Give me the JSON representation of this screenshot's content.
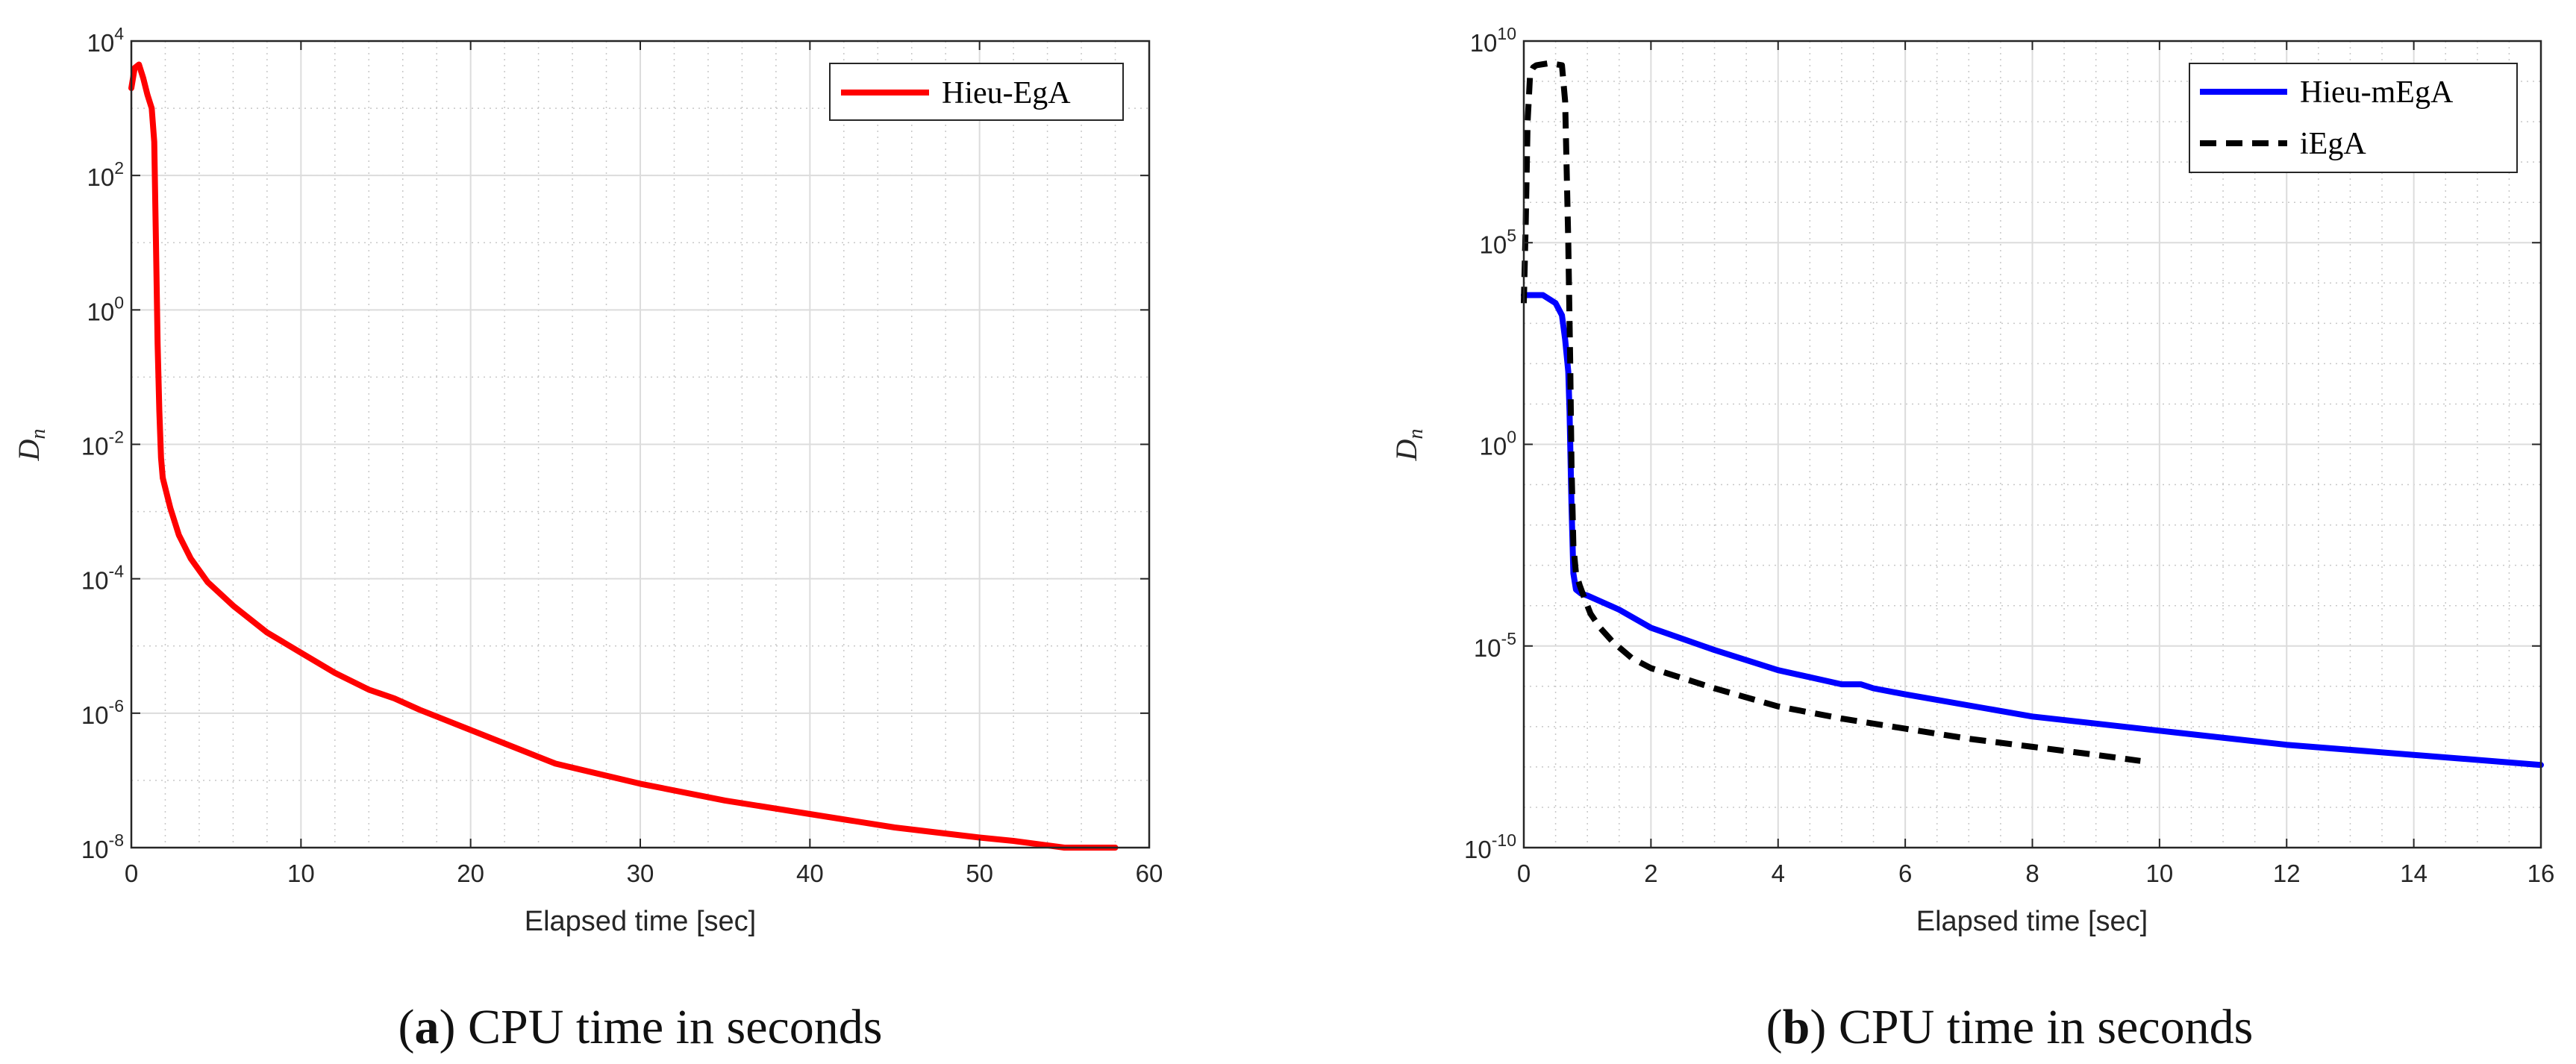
{
  "chart_data": [
    {
      "type": "line",
      "panel_label": "a",
      "caption_text": "CPU time in seconds",
      "xlabel": "Elapsed time [sec]",
      "ylabel": "D",
      "ylabel_sub": "n",
      "xlim": [
        0,
        60
      ],
      "ylog_range": [
        -8,
        4
      ],
      "yscale": "log",
      "grid": true,
      "minor_grid": true,
      "legend_position": "top-right",
      "x_ticks": [
        "0",
        "10",
        "20",
        "30",
        "40",
        "50",
        "60"
      ],
      "y_tick_exponents": [
        "-8",
        "-6",
        "-4",
        "-2",
        "0",
        "2",
        "4"
      ],
      "series": [
        {
          "name": "Hieu-EgA",
          "color": "#ff0000",
          "style": "solid",
          "x": [
            0,
            0.2,
            0.45,
            0.7,
            0.95,
            1.2,
            1.35,
            1.45,
            1.55,
            1.65,
            1.75,
            1.85,
            2.0,
            2.3,
            2.8,
            3.5,
            4.5,
            6,
            8,
            10,
            12,
            14,
            15.5,
            17,
            18,
            20,
            22,
            25,
            30,
            35,
            40,
            45,
            50,
            52,
            55,
            58
          ],
          "log10": [
            3.3,
            3.6,
            3.65,
            3.45,
            3.2,
            3.0,
            2.5,
            1.0,
            -0.5,
            -1.5,
            -2.2,
            -2.5,
            -2.65,
            -2.95,
            -3.35,
            -3.7,
            -4.05,
            -4.4,
            -4.8,
            -5.1,
            -5.4,
            -5.65,
            -5.78,
            -5.95,
            -6.05,
            -6.25,
            -6.45,
            -6.75,
            -7.05,
            -7.3,
            -7.5,
            -7.7,
            -7.85,
            -7.9,
            -8.0,
            -8.0
          ]
        }
      ]
    },
    {
      "type": "line",
      "panel_label": "b",
      "caption_text": "CPU time in seconds",
      "xlabel": "Elapsed time [sec]",
      "ylabel": "D",
      "ylabel_sub": "n",
      "xlim": [
        0,
        16
      ],
      "ylog_range": [
        -10,
        10
      ],
      "yscale": "log",
      "grid": true,
      "minor_grid": true,
      "legend_position": "top-right",
      "x_ticks": [
        "0",
        "2",
        "4",
        "6",
        "8",
        "10",
        "12",
        "14",
        "16"
      ],
      "y_tick_exponents": [
        "-10",
        "-5",
        "0",
        "5",
        "10"
      ],
      "series": [
        {
          "name": "Hieu-mEgA",
          "color": "#0000ff",
          "style": "solid",
          "x": [
            0,
            0.3,
            0.5,
            0.6,
            0.65,
            0.7,
            0.72,
            0.75,
            0.78,
            0.82,
            0.9,
            1.0,
            1.5,
            2.0,
            3.0,
            4.0,
            5.0,
            5.3,
            5.5,
            6,
            8,
            10,
            12,
            14,
            16
          ],
          "log10": [
            3.7,
            3.7,
            3.5,
            3.2,
            2.6,
            1.8,
            0.8,
            -1.5,
            -3.2,
            -3.6,
            -3.7,
            -3.75,
            -4.1,
            -4.55,
            -5.1,
            -5.6,
            -5.95,
            -5.95,
            -6.05,
            -6.2,
            -6.75,
            -7.1,
            -7.45,
            -7.7,
            -7.95
          ]
        },
        {
          "name": "iEgA",
          "color": "#000000",
          "style": "dashed",
          "x": [
            0,
            0.03,
            0.06,
            0.1,
            0.15,
            0.2,
            0.4,
            0.6,
            0.65,
            0.7,
            0.73,
            0.75,
            0.78,
            0.82,
            0.88,
            0.95,
            1.05,
            1.2,
            1.4,
            1.7,
            2.0,
            3.0,
            4.0,
            5.0,
            6.0,
            7.0,
            8.0,
            9.0,
            9.7
          ],
          "log10": [
            3.5,
            5.5,
            8.0,
            9.2,
            9.35,
            9.4,
            9.45,
            9.4,
            8.5,
            5.0,
            2.0,
            -0.5,
            -2.5,
            -3.2,
            -3.5,
            -3.8,
            -4.2,
            -4.55,
            -4.9,
            -5.3,
            -5.55,
            -6.05,
            -6.5,
            -6.8,
            -7.05,
            -7.3,
            -7.5,
            -7.7,
            -7.85
          ]
        }
      ]
    }
  ]
}
